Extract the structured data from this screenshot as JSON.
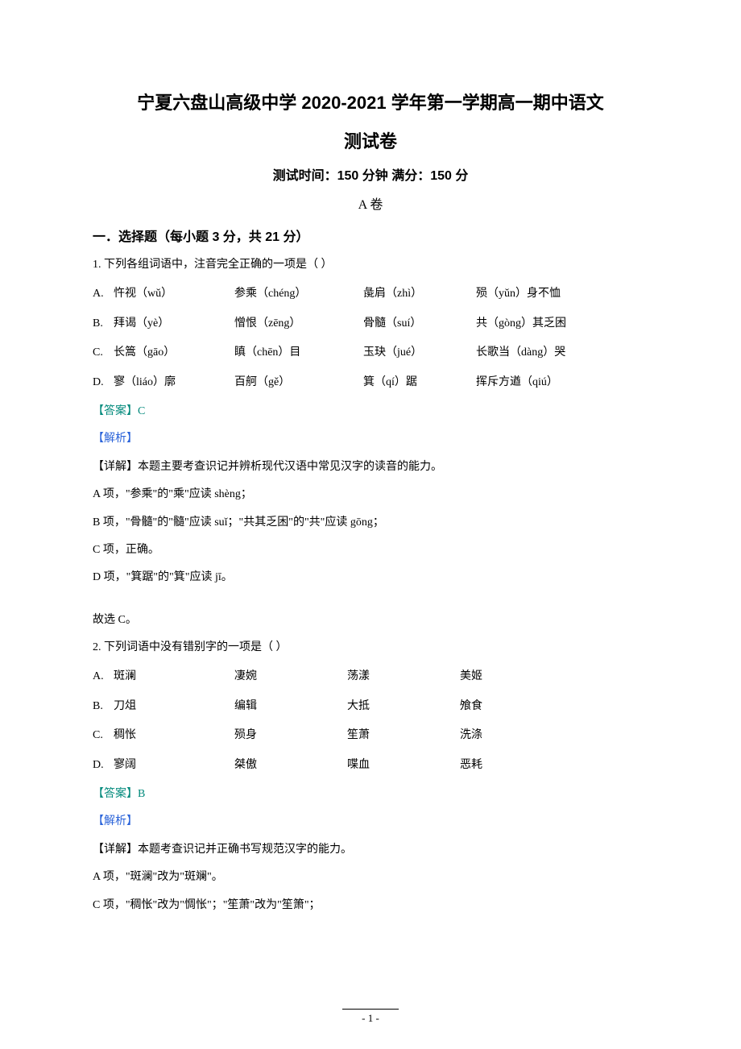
{
  "title_main": "宁夏六盘山高级中学 2020-2021 学年第一学期高一期中语文",
  "title_sub": "测试卷",
  "test_info": "测试时间：150 分钟    满分：150 分",
  "paper_label": "A 卷",
  "section1_heading": "一．选择题（每小题 3 分，共 21 分）",
  "q1": {
    "stem": "1. 下列各组词语中，注音完全正确的一项是（     ）",
    "A": {
      "label": "A.",
      "c1": "忤视（wǔ）",
      "c2": "参乘（chéng）",
      "c3": "彘肩（zhì）",
      "c4": "殒（yǔn）身不恤"
    },
    "B": {
      "label": "B.",
      "c1": "拜谒（yè）",
      "c2": "憎恨（zēng）",
      "c3": "骨髓（suí）",
      "c4": "共（gòng）其乏困"
    },
    "C": {
      "label": "C.",
      "c1": "长篙（gāo）",
      "c2": "瞋（chēn）目",
      "c3": "玉玦（jué）",
      "c4": "长歌当（dàng）哭"
    },
    "D": {
      "label": "D.",
      "c1": "寥（liáo）廓",
      "c2": "百舸（gě）",
      "c3": "箕（qí）踞",
      "c4": "挥斥方遒（qiú）"
    },
    "answer_label": "【答案】",
    "answer_value": "C",
    "analysis_label": "【解析】",
    "detail": "【详解】本题主要考查识记并辨析现代汉语中常见汉字的读音的能力。",
    "lines": [
      "A 项，\"参乘\"的\"乘\"应读 shèng；",
      "B 项，\"骨髓\"的\"髓\"应读 suǐ；\"共其乏困\"的\"共\"应读  gōng；",
      "C 项，正确。",
      "D 项，\"箕踞\"的\"箕\"应读 jī。"
    ],
    "conclusion": "故选 C。"
  },
  "q2": {
    "stem": "2. 下列词语中没有错别字的一项是（     ）",
    "A": {
      "label": "A.",
      "c1": "斑澜",
      "c2": "凄婉",
      "c3": "荡漾",
      "c4": "美姬"
    },
    "B": {
      "label": "B.",
      "c1": "刀俎",
      "c2": "编辑",
      "c3": "大抵",
      "c4": "飧食"
    },
    "C": {
      "label": "C.",
      "c1": "稠怅",
      "c2": "殒身",
      "c3": "笙萧",
      "c4": "洗涤"
    },
    "D": {
      "label": "D.",
      "c1": "寥阔",
      "c2": "桀傲",
      "c3": "喋血",
      "c4": "恶耗"
    },
    "answer_label": "【答案】",
    "answer_value": "B",
    "analysis_label": "【解析】",
    "detail": "【详解】本题考查识记并正确书写规范汉字的能力。",
    "lines": [
      "A 项，\"斑澜\"改为\"斑斓\"。",
      "C 项，\"稠怅\"改为\"惆怅\"；\"笙萧\"改为\"笙箫\"；"
    ]
  },
  "page_number": "- 1 -",
  "colors": {
    "teal": "#00897b",
    "blue": "#2962d9",
    "text": "#000000",
    "bg": "#ffffff"
  }
}
